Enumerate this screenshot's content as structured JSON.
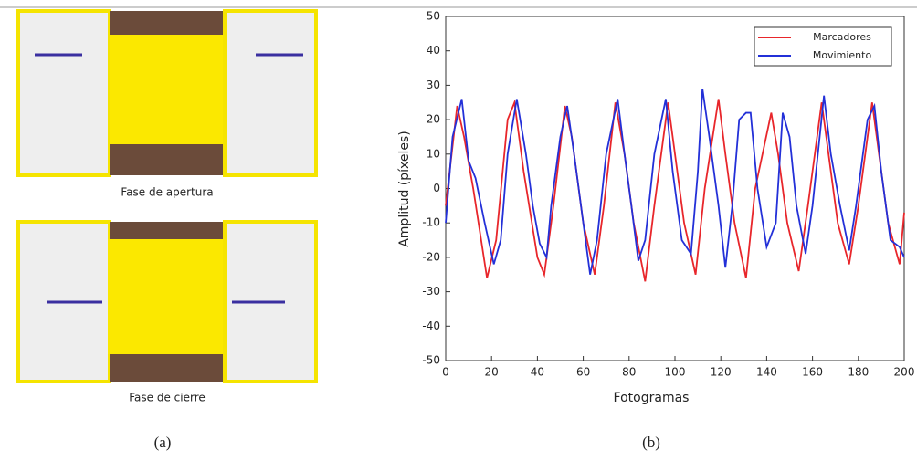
{
  "panel_a": {
    "caption_top": "Fase de apertura",
    "caption_bottom": "Fase de cierre",
    "label": "(a)"
  },
  "panel_b_label": "(b)",
  "chart_data": {
    "type": "line",
    "xlabel": "Fotogramas",
    "ylabel": "Amplitud (píxeles)",
    "xlim": [
      0,
      200
    ],
    "xticks": [
      0,
      20,
      40,
      60,
      80,
      100,
      120,
      140,
      160,
      180,
      200
    ],
    "ylim": [
      -50,
      50
    ],
    "yticks": [
      -50,
      -40,
      -30,
      -20,
      -10,
      0,
      10,
      20,
      30,
      40,
      50
    ],
    "legend": "upper right",
    "series": [
      {
        "name": "Marcadores",
        "color": "#e8262b",
        "x": [
          0,
          5,
          8,
          12,
          18,
          22,
          27,
          30,
          34,
          40,
          43,
          47,
          52,
          55,
          60,
          65,
          69,
          74,
          78,
          82,
          87,
          91,
          97,
          100,
          104,
          109,
          113,
          119,
          122,
          126,
          131,
          135,
          142,
          145,
          149,
          154,
          158,
          164,
          167,
          171,
          176,
          180,
          186,
          189,
          193,
          198,
          200
        ],
        "values": [
          -5,
          24,
          15,
          0,
          -26,
          -15,
          20,
          25,
          5,
          -20,
          -25,
          -5,
          24,
          15,
          -10,
          -25,
          -5,
          25,
          10,
          -10,
          -27,
          -5,
          25,
          10,
          -10,
          -25,
          0,
          26,
          10,
          -10,
          -26,
          0,
          22,
          10,
          -10,
          -24,
          -5,
          25,
          10,
          -10,
          -22,
          -5,
          25,
          10,
          -10,
          -22,
          -7
        ]
      },
      {
        "name": "Movimiento",
        "color": "#2330d8",
        "x": [
          0,
          3,
          7,
          10,
          13,
          17,
          21,
          24,
          27,
          31,
          35,
          38,
          41,
          44,
          46,
          50,
          53,
          56,
          60,
          63,
          66,
          70,
          75,
          78,
          81,
          84,
          87,
          91,
          96,
          99,
          103,
          107,
          110,
          112,
          115,
          119,
          122,
          125,
          128,
          131,
          133,
          136,
          140,
          144,
          147,
          150,
          153,
          157,
          160,
          165,
          168,
          172,
          176,
          179,
          184,
          187,
          190,
          194,
          198,
          200
        ],
        "values": [
          -10,
          15,
          26,
          8,
          3,
          -10,
          -22,
          -15,
          10,
          26,
          10,
          -5,
          -16,
          -20,
          -5,
          15,
          24,
          10,
          -10,
          -25,
          -15,
          10,
          26,
          10,
          -5,
          -21,
          -15,
          10,
          26,
          5,
          -15,
          -19,
          5,
          29,
          15,
          -5,
          -23,
          -5,
          20,
          22,
          22,
          0,
          -17,
          -10,
          22,
          15,
          -5,
          -19,
          -5,
          27,
          10,
          -5,
          -18,
          -5,
          20,
          24,
          5,
          -15,
          -17,
          -20
        ]
      }
    ]
  }
}
